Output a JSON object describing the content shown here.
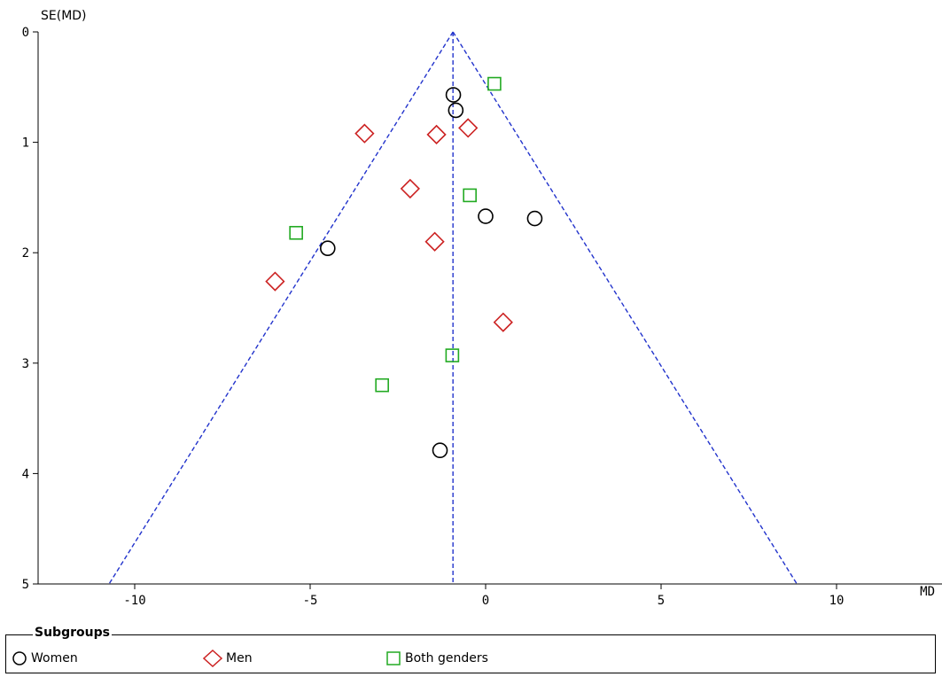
{
  "chart_data": {
    "type": "scatter",
    "subtype": "funnel-plot",
    "xlabel": "MD",
    "ylabel": "SE(MD)",
    "xlim": [
      -13,
      13
    ],
    "ylim": [
      0,
      5
    ],
    "y_inverted": true,
    "x_ticks": [
      -10,
      -5,
      0,
      5,
      10
    ],
    "y_ticks": [
      0,
      1,
      2,
      3,
      4,
      5
    ],
    "pooled_estimate": -0.93,
    "confidence_limit_z": 1.96,
    "series": [
      {
        "name": "Women",
        "marker": "circle",
        "color": "#000000",
        "points": [
          {
            "x": -0.92,
            "y": 0.57
          },
          {
            "x": -0.85,
            "y": 0.71
          },
          {
            "x": 0.0,
            "y": 1.67
          },
          {
            "x": 1.4,
            "y": 1.69
          },
          {
            "x": -4.5,
            "y": 1.96
          },
          {
            "x": -1.3,
            "y": 3.79
          }
        ]
      },
      {
        "name": "Men",
        "marker": "diamond",
        "color": "#cc2222",
        "points": [
          {
            "x": -3.45,
            "y": 0.92
          },
          {
            "x": -1.4,
            "y": 0.93
          },
          {
            "x": -0.5,
            "y": 0.87
          },
          {
            "x": -2.15,
            "y": 1.42
          },
          {
            "x": -1.45,
            "y": 1.9
          },
          {
            "x": -6.0,
            "y": 2.26
          },
          {
            "x": 0.5,
            "y": 2.63
          }
        ]
      },
      {
        "name": "Both genders",
        "marker": "square",
        "color": "#22aa22",
        "points": [
          {
            "x": 0.25,
            "y": 0.47
          },
          {
            "x": -0.45,
            "y": 1.48
          },
          {
            "x": -5.4,
            "y": 1.82
          },
          {
            "x": -0.95,
            "y": 2.93
          },
          {
            "x": -2.95,
            "y": 3.2
          }
        ]
      }
    ],
    "legend": {
      "title": "Subgroups",
      "placement": "bottom"
    }
  }
}
